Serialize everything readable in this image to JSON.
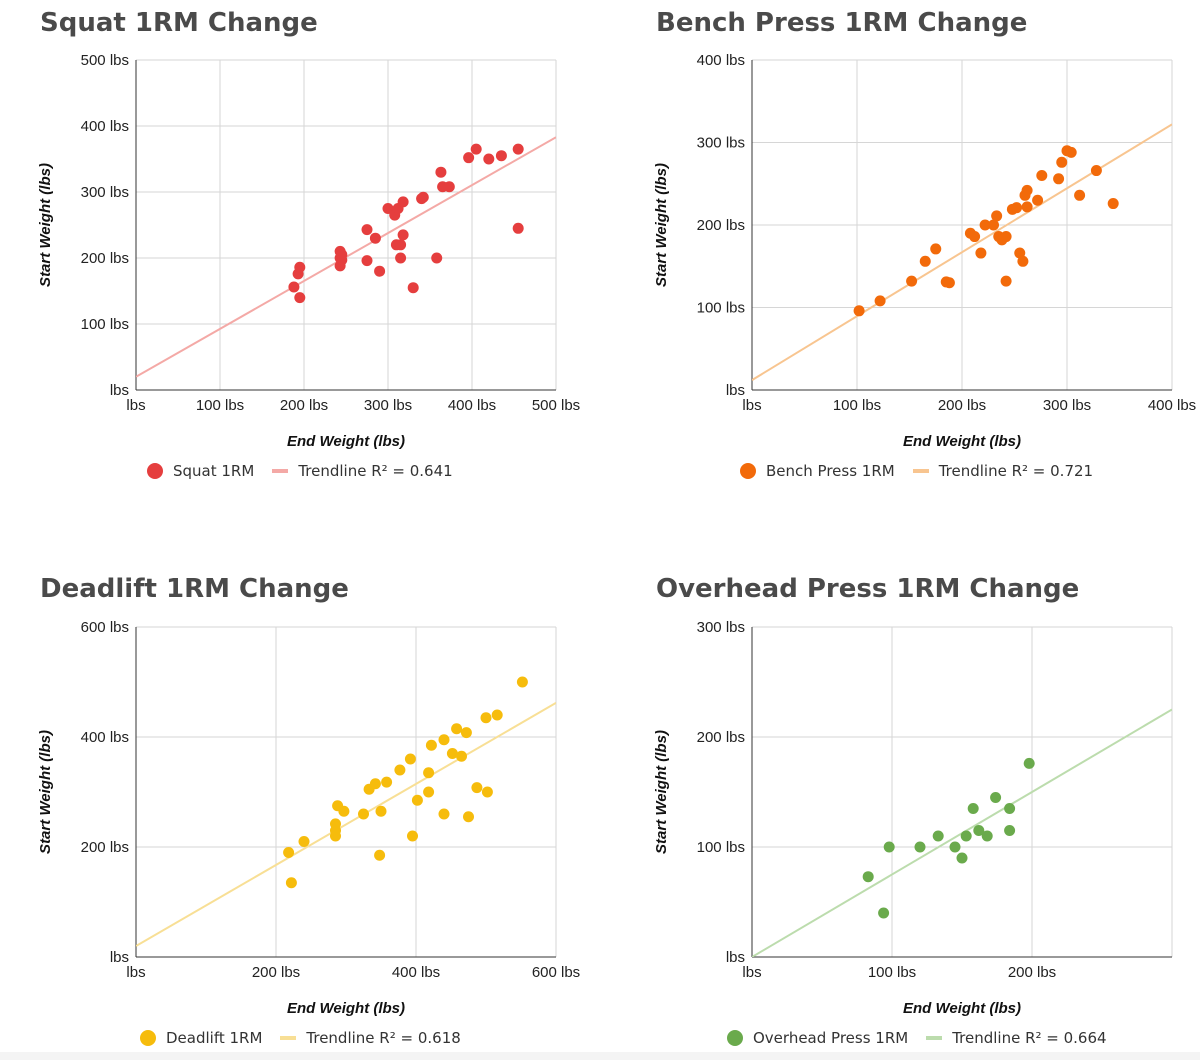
{
  "chart_data": [
    {
      "type": "scatter",
      "title": "Squat 1RM Change",
      "xlabel": "End Weight (lbs)",
      "ylabel": "Start Weight (lbs)",
      "color": "#e53e3e",
      "trend_color": "#f4a9a6",
      "xlim": [
        0,
        500
      ],
      "ylim": [
        0,
        500
      ],
      "x_ticks": [
        0,
        100,
        200,
        300,
        400,
        500
      ],
      "x_tick_labels": [
        "lbs",
        "100 lbs",
        "200 lbs",
        "300 lbs",
        "400 lbs",
        "500 lbs"
      ],
      "y_ticks": [
        0,
        100,
        200,
        300,
        400,
        500
      ],
      "y_tick_labels": [
        "lbs",
        "100 lbs",
        "200 lbs",
        "300 lbs",
        "400 lbs",
        "500 lbs"
      ],
      "trendline": [
        [
          0,
          20
        ],
        [
          500,
          383
        ]
      ],
      "legend": {
        "series": "Squat 1RM",
        "trend": "Trendline R² = 0.641"
      },
      "points": [
        [
          188,
          156
        ],
        [
          193,
          176
        ],
        [
          195,
          186
        ],
        [
          195,
          140
        ],
        [
          243,
          200
        ],
        [
          243,
          210
        ],
        [
          243,
          188
        ],
        [
          245,
          205
        ],
        [
          245,
          197
        ],
        [
          275,
          243
        ],
        [
          275,
          196
        ],
        [
          285,
          230
        ],
        [
          290,
          180
        ],
        [
          300,
          275
        ],
        [
          308,
          265
        ],
        [
          310,
          220
        ],
        [
          312,
          275
        ],
        [
          315,
          220
        ],
        [
          315,
          200
        ],
        [
          318,
          285
        ],
        [
          318,
          235
        ],
        [
          330,
          155
        ],
        [
          340,
          290
        ],
        [
          342,
          292
        ],
        [
          358,
          200
        ],
        [
          363,
          330
        ],
        [
          365,
          308
        ],
        [
          373,
          308
        ],
        [
          396,
          352
        ],
        [
          405,
          365
        ],
        [
          420,
          350
        ],
        [
          435,
          355
        ],
        [
          455,
          365
        ],
        [
          455,
          245
        ]
      ]
    },
    {
      "type": "scatter",
      "title": "Bench Press 1RM Change",
      "xlabel": "End Weight (lbs)",
      "ylabel": "Start Weight (lbs)",
      "color": "#f26a0a",
      "trend_color": "#f8c590",
      "xlim": [
        0,
        400
      ],
      "ylim": [
        0,
        400
      ],
      "x_ticks": [
        0,
        100,
        200,
        300,
        400
      ],
      "x_tick_labels": [
        "lbs",
        "100 lbs",
        "200 lbs",
        "300 lbs",
        "400 lbs"
      ],
      "y_ticks": [
        0,
        100,
        200,
        300,
        400
      ],
      "y_tick_labels": [
        "lbs",
        "100 lbs",
        "200 lbs",
        "300 lbs",
        "400 lbs"
      ],
      "trendline": [
        [
          0,
          12
        ],
        [
          400,
          322
        ]
      ],
      "legend": {
        "series": "Bench Press 1RM",
        "trend": "Trendline R² = 0.721"
      },
      "points": [
        [
          102,
          96
        ],
        [
          122,
          108
        ],
        [
          152,
          132
        ],
        [
          165,
          156
        ],
        [
          175,
          171
        ],
        [
          185,
          131
        ],
        [
          188,
          130
        ],
        [
          208,
          190
        ],
        [
          212,
          186
        ],
        [
          218,
          166
        ],
        [
          222,
          200
        ],
        [
          230,
          200
        ],
        [
          233,
          211
        ],
        [
          235,
          186
        ],
        [
          238,
          182
        ],
        [
          242,
          186
        ],
        [
          242,
          132
        ],
        [
          248,
          219
        ],
        [
          252,
          221
        ],
        [
          255,
          166
        ],
        [
          258,
          156
        ],
        [
          260,
          236
        ],
        [
          262,
          242
        ],
        [
          262,
          222
        ],
        [
          272,
          230
        ],
        [
          276,
          260
        ],
        [
          292,
          256
        ],
        [
          295,
          276
        ],
        [
          300,
          290
        ],
        [
          304,
          288
        ],
        [
          312,
          236
        ],
        [
          328,
          266
        ],
        [
          344,
          226
        ]
      ]
    },
    {
      "type": "scatter",
      "title": "Deadlift 1RM Change",
      "xlabel": "End Weight (lbs)",
      "ylabel": "Start Weight (lbs)",
      "color": "#f6bc0c",
      "trend_color": "#f8df95",
      "xlim": [
        0,
        600
      ],
      "ylim": [
        0,
        600
      ],
      "x_ticks": [
        0,
        200,
        400,
        600
      ],
      "x_tick_labels": [
        "lbs",
        "200 lbs",
        "400 lbs",
        "600 lbs"
      ],
      "y_ticks": [
        0,
        200,
        400,
        600
      ],
      "y_tick_labels": [
        "lbs",
        "200 lbs",
        "400 lbs",
        "600 lbs"
      ],
      "trendline": [
        [
          0,
          20
        ],
        [
          600,
          462
        ]
      ],
      "legend": {
        "series": "Deadlift 1RM",
        "trend": "Trendline R² = 0.618"
      },
      "points": [
        [
          218,
          190
        ],
        [
          222,
          135
        ],
        [
          240,
          210
        ],
        [
          285,
          220
        ],
        [
          285,
          230
        ],
        [
          285,
          242
        ],
        [
          288,
          275
        ],
        [
          297,
          265
        ],
        [
          325,
          260
        ],
        [
          333,
          305
        ],
        [
          342,
          315
        ],
        [
          348,
          185
        ],
        [
          350,
          265
        ],
        [
          358,
          318
        ],
        [
          377,
          340
        ],
        [
          392,
          360
        ],
        [
          395,
          220
        ],
        [
          402,
          285
        ],
        [
          418,
          335
        ],
        [
          418,
          300
        ],
        [
          422,
          385
        ],
        [
          440,
          260
        ],
        [
          440,
          395
        ],
        [
          452,
          370
        ],
        [
          458,
          415
        ],
        [
          465,
          365
        ],
        [
          472,
          408
        ],
        [
          475,
          255
        ],
        [
          487,
          308
        ],
        [
          500,
          435
        ],
        [
          502,
          300
        ],
        [
          516,
          440
        ],
        [
          552,
          500
        ]
      ]
    },
    {
      "type": "scatter",
      "title": "Overhead Press 1RM Change",
      "xlabel": "End Weight (lbs)",
      "ylabel": "Start Weight (lbs)",
      "color": "#6aaa4c",
      "trend_color": "#bcdcad",
      "xlim": [
        0,
        300
      ],
      "ylim": [
        0,
        300
      ],
      "x_ticks": [
        0,
        100,
        200,
        300
      ],
      "x_tick_labels": [
        "lbs",
        "100 lbs",
        "200 lbs",
        ""
      ],
      "y_ticks": [
        0,
        100,
        200,
        300
      ],
      "y_tick_labels": [
        "lbs",
        "100 lbs",
        "200 lbs",
        "300 lbs"
      ],
      "trendline": [
        [
          0,
          0
        ],
        [
          300,
          225
        ]
      ],
      "legend": {
        "series": "Overhead Press 1RM",
        "trend": "Trendline R² = 0.664"
      },
      "points": [
        [
          83,
          73
        ],
        [
          94,
          40
        ],
        [
          98,
          100
        ],
        [
          120,
          100
        ],
        [
          133,
          110
        ],
        [
          145,
          100
        ],
        [
          150,
          90
        ],
        [
          153,
          110
        ],
        [
          158,
          135
        ],
        [
          162,
          115
        ],
        [
          168,
          110
        ],
        [
          174,
          145
        ],
        [
          184,
          135
        ],
        [
          184,
          115
        ],
        [
          198,
          176
        ]
      ]
    }
  ]
}
